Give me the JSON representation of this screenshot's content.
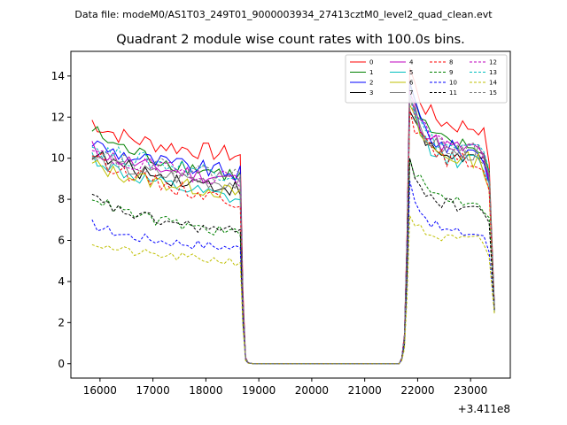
{
  "figure": {
    "supertitle": "Data file: modeM0/AS1T03_249T01_9000003934_27413cztM0_level2_quad_clean.evt"
  },
  "chart_data": {
    "type": "line",
    "title": "Quadrant 2 module wise count rates with 100.0s bins.",
    "xlabel": "",
    "ylabel": "",
    "x_offset_label": "+3.411e8",
    "xlim": [
      15450,
      23750
    ],
    "ylim": [
      -0.7,
      15.2
    ],
    "xticks": [
      16000,
      17000,
      18000,
      19000,
      20000,
      21000,
      22000,
      23000
    ],
    "xtick_labels": [
      "16000",
      "17000",
      "18000",
      "19000",
      "20000",
      "21000",
      "22000",
      "23000"
    ],
    "yticks": [
      0,
      2,
      4,
      6,
      8,
      10,
      12,
      14
    ],
    "ytick_labels": [
      "0",
      "2",
      "4",
      "6",
      "8",
      "10",
      "12",
      "14"
    ],
    "x_segments": [
      {
        "start": 15850,
        "end": 18650,
        "step": 100
      },
      {
        "start": 21850,
        "end": 23450,
        "step": 100
      }
    ],
    "gap_x": [
      18650,
      18700,
      18750,
      18800,
      18900,
      19000,
      20000,
      21000,
      21650,
      21700,
      21750,
      21800,
      21850
    ],
    "gap_fraction": [
      1.0,
      0.35,
      0.03,
      0.005,
      0.0,
      0.0,
      0.0,
      0.0,
      0.0,
      0.02,
      0.1,
      0.45,
      1.0
    ],
    "legend": {
      "location": "upper right",
      "ncol": 4
    },
    "series": [
      {
        "name": "0",
        "color": "#ff0000",
        "dashed": false,
        "seg1_mean": 9.9,
        "seg1_start": 11.8,
        "seg1_end": 10.3,
        "seg2_peak": 14.4,
        "seg2_mean": 11.5,
        "seg2_end": 2.8
      },
      {
        "name": "1",
        "color": "#008000",
        "dashed": false,
        "seg1_mean": 9.2,
        "seg1_start": 11.4,
        "seg1_end": 9.0,
        "seg2_peak": 13.6,
        "seg2_mean": 10.5,
        "seg2_end": 2.7
      },
      {
        "name": "2",
        "color": "#0000ff",
        "dashed": false,
        "seg1_mean": 9.4,
        "seg1_start": 10.8,
        "seg1_end": 9.1,
        "seg2_peak": 13.7,
        "seg2_mean": 10.3,
        "seg2_end": 2.6
      },
      {
        "name": "3",
        "color": "#000000",
        "dashed": false,
        "seg1_mean": 8.7,
        "seg1_start": 10.3,
        "seg1_end": 8.3,
        "seg2_peak": 12.3,
        "seg2_mean": 10.0,
        "seg2_end": 2.6
      },
      {
        "name": "4",
        "color": "#bf00bf",
        "dashed": false,
        "seg1_mean": 9.1,
        "seg1_start": 10.5,
        "seg1_end": 8.8,
        "seg2_peak": 13.2,
        "seg2_mean": 10.4,
        "seg2_end": 2.7
      },
      {
        "name": "5",
        "color": "#00bfbf",
        "dashed": false,
        "seg1_mean": 8.3,
        "seg1_start": 10.1,
        "seg1_end": 7.6,
        "seg2_peak": 13.0,
        "seg2_mean": 9.8,
        "seg2_end": 2.6
      },
      {
        "name": "6",
        "color": "#bfbf00",
        "dashed": false,
        "seg1_mean": 8.6,
        "seg1_start": 9.7,
        "seg1_end": 8.0,
        "seg2_peak": 12.6,
        "seg2_mean": 9.9,
        "seg2_end": 2.5
      },
      {
        "name": "7",
        "color": "#808080",
        "dashed": false,
        "seg1_mean": 8.9,
        "seg1_start": 10.0,
        "seg1_end": 8.6,
        "seg2_peak": 12.9,
        "seg2_mean": 10.2,
        "seg2_end": 2.6
      },
      {
        "name": "8",
        "color": "#ff0000",
        "dashed": true,
        "seg1_mean": 8.2,
        "seg1_start": 10.3,
        "seg1_end": 7.6,
        "seg2_peak": 12.4,
        "seg2_mean": 9.8,
        "seg2_end": 2.7
      },
      {
        "name": "9",
        "color": "#008000",
        "dashed": true,
        "seg1_mean": 6.3,
        "seg1_start": 8.2,
        "seg1_end": 6.3,
        "seg2_peak": 10.0,
        "seg2_mean": 7.9,
        "seg2_end": 2.5
      },
      {
        "name": "10",
        "color": "#0000ff",
        "dashed": true,
        "seg1_mean": 5.5,
        "seg1_start": 6.8,
        "seg1_end": 5.7,
        "seg2_peak": 8.9,
        "seg2_mean": 6.3,
        "seg2_end": 2.5
      },
      {
        "name": "11",
        "color": "#000000",
        "dashed": true,
        "seg1_mean": 6.4,
        "seg1_start": 8.1,
        "seg1_end": 6.3,
        "seg2_peak": 10.0,
        "seg2_mean": 7.6,
        "seg2_end": 2.6
      },
      {
        "name": "12",
        "color": "#bf00bf",
        "dashed": true,
        "seg1_mean": 9.2,
        "seg1_start": 10.3,
        "seg1_end": 8.8,
        "seg2_peak": 13.3,
        "seg2_mean": 10.5,
        "seg2_end": 2.7
      },
      {
        "name": "13",
        "color": "#00bfbf",
        "dashed": true,
        "seg1_mean": 9.5,
        "seg1_start": 10.6,
        "seg1_end": 9.0,
        "seg2_peak": 13.1,
        "seg2_mean": 10.4,
        "seg2_end": 2.7
      },
      {
        "name": "14",
        "color": "#bfbf00",
        "dashed": true,
        "seg1_mean": 4.9,
        "seg1_start": 5.9,
        "seg1_end": 5.0,
        "seg2_peak": 7.2,
        "seg2_mean": 6.0,
        "seg2_end": 2.4
      },
      {
        "name": "15",
        "color": "#808080",
        "dashed": true,
        "seg1_mean": 9.3,
        "seg1_start": 10.4,
        "seg1_end": 9.0,
        "seg2_peak": 13.0,
        "seg2_mean": 10.3,
        "seg2_end": 2.6
      }
    ]
  }
}
